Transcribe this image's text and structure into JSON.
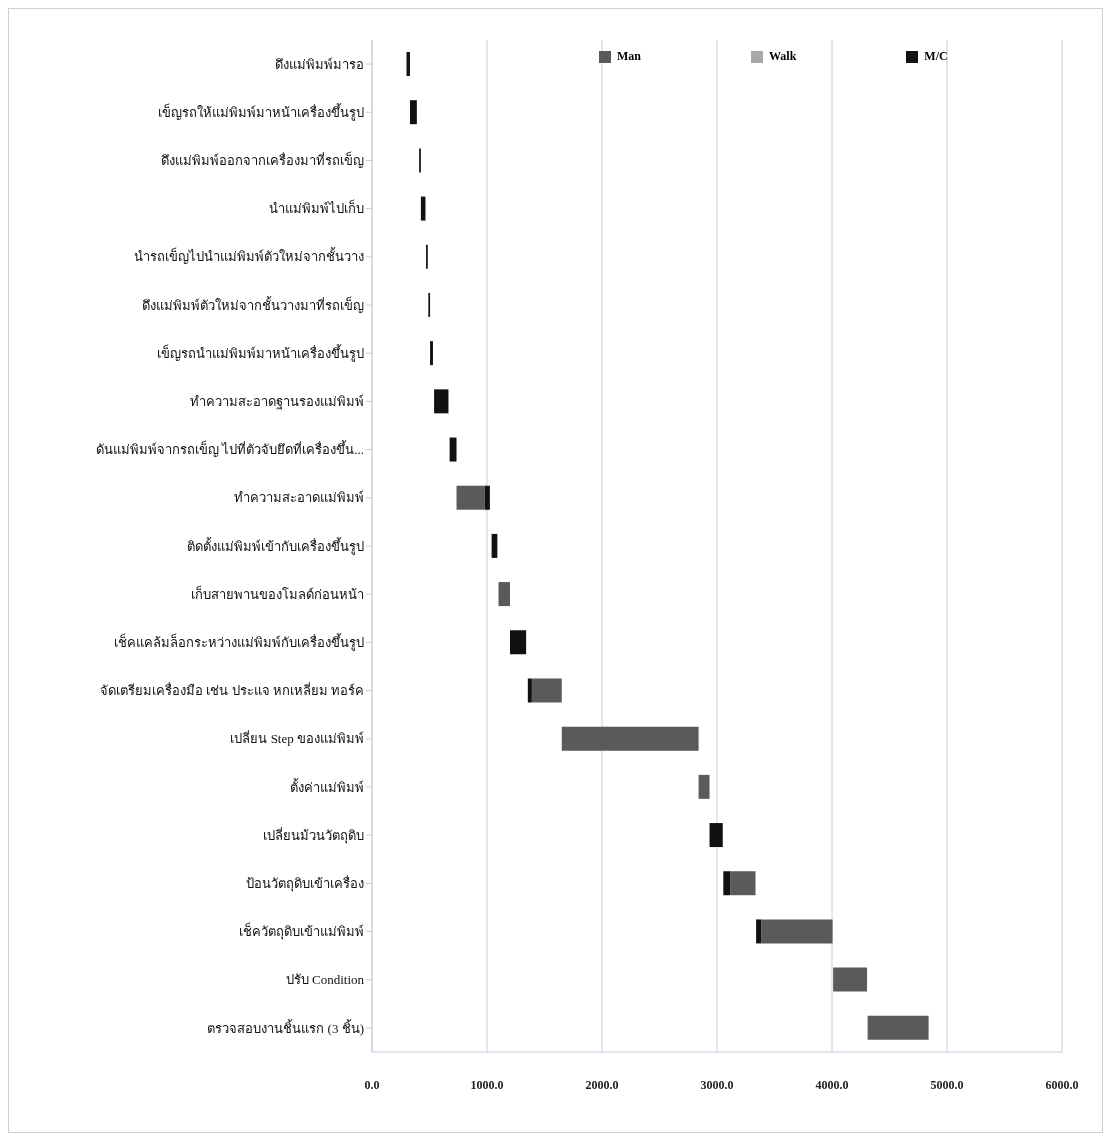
{
  "chart_data": {
    "type": "bar",
    "orientation": "horizontal",
    "categories": [
      "ดึงแม่พิมพ์มารอ",
      "เข็ญรถให้แม่พิมพ์มาหน้าเครื่องขึ้นรูป",
      "ดึงแม่พิมพ์ออกจากเครื่องมาที่รถเข็ญ",
      "นำแม่พิมพ์ไปเก็บ",
      "นำรถเข็ญไปนำแม่พิมพ์ตัวใหม่จากชั้นวาง",
      "ดึงแม่พิมพ์ตัวใหม่จากชั้นวางมาที่รถเข็ญ",
      "เข็ญรถนำแม่พิมพ์มาหน้าเครื่องขึ้นรูป",
      "ทำความสะอาดฐานรองแม่พิมพ์",
      "ดันแม่พิมพ์จากรถเข็ญ ไปที่ตัวจับยึดที่เครื่องขึ้น...",
      "ทำความสะอาดแม่พิมพ์",
      "ติดตั้งแม่พิมพ์เข้ากับเครื่องขึ้นรูป",
      "เก็บสายพานของโมลด์ก่อนหน้า",
      "เช็คแคล้มล็อกระหว่างแม่พิมพ์กับเครื่องขึ้นรูป",
      "จัดเตรียมเครื่องมือ เช่น ประแจ หกเหลี่ยม ทอร์ค",
      "เปลี่ยน Step ของแม่พิมพ์",
      "ตั้งค่าแม่พิมพ์",
      "เปลี่ยนม้วนวัตถุดิบ",
      "ป้อนวัตถุดิบเข้าเครื่อง",
      "เช็ควัตถุดิบเข้าแม่พิมพ์",
      "ปรับ Condition",
      "ตรวจสอบงานชิ้นแรก (3 ชิ้น)"
    ],
    "series": [
      {
        "name": "Man",
        "color": "#5a5a5a",
        "base": [
          null,
          null,
          null,
          null,
          null,
          null,
          null,
          null,
          null,
          735,
          null,
          1100,
          null,
          1390,
          1650,
          2840,
          null,
          3115,
          3385,
          4010,
          4310
        ],
        "values": [
          null,
          null,
          null,
          null,
          null,
          null,
          null,
          null,
          null,
          245,
          null,
          100,
          null,
          260,
          1190,
          95,
          null,
          220,
          620,
          295,
          530
        ]
      },
      {
        "name": "Walk",
        "color": "#a8a8a8",
        "base": [
          null,
          null,
          null,
          null,
          null,
          null,
          null,
          null,
          null,
          null,
          null,
          null,
          null,
          null,
          null,
          null,
          null,
          null,
          null,
          null,
          null
        ],
        "values": [
          null,
          null,
          null,
          null,
          null,
          null,
          null,
          null,
          null,
          null,
          null,
          null,
          null,
          null,
          null,
          null,
          null,
          null,
          null,
          null,
          null
        ]
      },
      {
        "name": "M/C",
        "color": "#111111",
        "base": [
          300,
          330,
          410,
          425,
          470,
          490,
          505,
          540,
          675,
          980,
          1040,
          null,
          1200,
          1355,
          null,
          null,
          2935,
          3055,
          3340,
          null,
          null
        ],
        "values": [
          30,
          60,
          15,
          40,
          15,
          15,
          25,
          125,
          60,
          45,
          50,
          null,
          140,
          35,
          null,
          null,
          115,
          60,
          45,
          null,
          null
        ]
      }
    ],
    "xlim": [
      0,
      6000
    ],
    "xticks": [
      {
        "value": 0,
        "label": "0.0"
      },
      {
        "value": 1000,
        "label": "1000.0"
      },
      {
        "value": 2000,
        "label": "2000.0"
      },
      {
        "value": 3000,
        "label": "3000.0"
      },
      {
        "value": 4000,
        "label": "4000.0"
      },
      {
        "value": 5000,
        "label": "5000.0"
      },
      {
        "value": 6000,
        "label": "6000.0"
      }
    ],
    "grid": "x",
    "legend": "top"
  }
}
